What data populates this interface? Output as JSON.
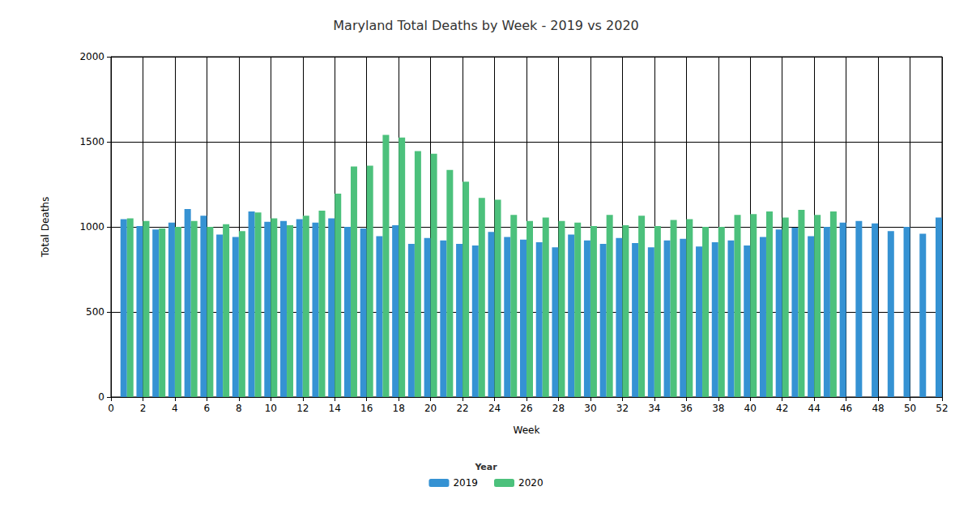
{
  "chart_data": {
    "type": "bar",
    "title": "Maryland Total Deaths by Week - 2019 vs 2020",
    "x_label": "Week",
    "y_label": "Total Deaths",
    "legend_title": "Year",
    "x": [
      1,
      2,
      3,
      4,
      5,
      6,
      7,
      8,
      9,
      10,
      11,
      12,
      13,
      14,
      15,
      16,
      17,
      18,
      19,
      20,
      21,
      22,
      23,
      24,
      25,
      26,
      27,
      28,
      29,
      30,
      31,
      32,
      33,
      34,
      35,
      36,
      37,
      38,
      39,
      40,
      41,
      42,
      43,
      44,
      45,
      46,
      47,
      48,
      49,
      50,
      51,
      52
    ],
    "series": [
      {
        "name": "2019",
        "color": "#3592d3",
        "values": [
          1045,
          1005,
          985,
          1025,
          1105,
          1065,
          955,
          940,
          1090,
          1030,
          1035,
          1045,
          1025,
          1050,
          1000,
          990,
          945,
          1010,
          900,
          935,
          920,
          900,
          890,
          970,
          940,
          925,
          910,
          880,
          955,
          920,
          900,
          935,
          905,
          880,
          920,
          930,
          885,
          910,
          920,
          890,
          940,
          985,
          995,
          945,
          1000,
          1025,
          1035,
          1020,
          975,
          1000,
          960,
          1055
        ]
      },
      {
        "name": "2020",
        "color": "#4cc17c",
        "values": [
          1050,
          1035,
          990,
          1000,
          1035,
          1000,
          1015,
          975,
          1085,
          1050,
          1010,
          1065,
          1095,
          1195,
          1355,
          1360,
          1540,
          1525,
          1445,
          1430,
          1335,
          1265,
          1170,
          1160,
          1070,
          1035,
          1055,
          1035,
          1025,
          1005,
          1070,
          1010,
          1065,
          1005,
          1040,
          1045,
          1000,
          1000,
          1070,
          1075,
          1090,
          1055,
          1100,
          1070,
          1090,
          null,
          null,
          null,
          null,
          null,
          null,
          null
        ]
      }
    ],
    "xlim": [
      0,
      52
    ],
    "xticks": [
      0,
      2,
      4,
      6,
      8,
      10,
      12,
      14,
      16,
      18,
      20,
      22,
      24,
      26,
      28,
      30,
      32,
      34,
      36,
      38,
      40,
      42,
      44,
      46,
      48,
      50,
      52
    ],
    "ylim": [
      0,
      2000
    ],
    "yticks": [
      0,
      500,
      1000,
      1500,
      2000
    ],
    "grid": true,
    "legend": "bottom"
  }
}
